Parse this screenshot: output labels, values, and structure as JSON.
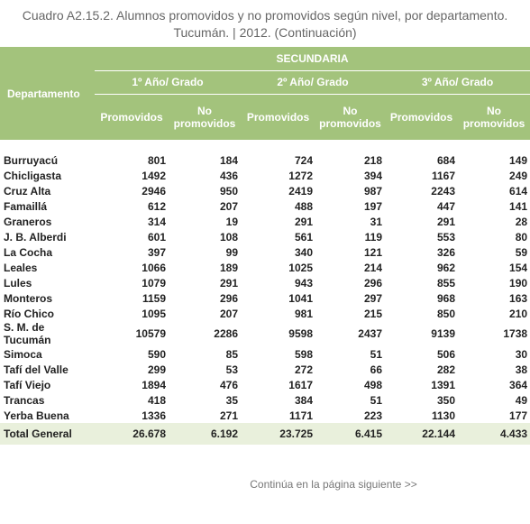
{
  "title_lines": [
    "Cuadro A2.15.2. Alumnos promovidos y no promovidos según nivel, por departamento.",
    "Tucumán. | 2012. (Continuación)"
  ],
  "table": {
    "header": {
      "first_column": "Departamento",
      "group": "SECUNDARIA",
      "years": [
        "1º Año/ Grado",
        "2º Año/ Grado",
        "3º Año/ Grado"
      ],
      "subheaders": [
        "Promovidos",
        "No promovidos",
        "Promovidos",
        "No promovidos",
        "Promovidos",
        "No promovidos"
      ]
    },
    "rows": [
      [
        "Burruyacú",
        "801",
        "184",
        "724",
        "218",
        "684",
        "149"
      ],
      [
        "Chicligasta",
        "1492",
        "436",
        "1272",
        "394",
        "1167",
        "249"
      ],
      [
        "Cruz Alta",
        "2946",
        "950",
        "2419",
        "987",
        "2243",
        "614"
      ],
      [
        "Famaillá",
        "612",
        "207",
        "488",
        "197",
        "447",
        "141"
      ],
      [
        "Graneros",
        "314",
        "19",
        "291",
        "31",
        "291",
        "28"
      ],
      [
        "J. B. Alberdi",
        "601",
        "108",
        "561",
        "119",
        "553",
        "80"
      ],
      [
        "La Cocha",
        "397",
        "99",
        "340",
        "121",
        "326",
        "59"
      ],
      [
        "Leales",
        "1066",
        "189",
        "1025",
        "214",
        "962",
        "154"
      ],
      [
        "Lules",
        "1079",
        "291",
        "943",
        "296",
        "855",
        "190"
      ],
      [
        "Monteros",
        "1159",
        "296",
        "1041",
        "297",
        "968",
        "163"
      ],
      [
        "Río Chico",
        "1095",
        "207",
        "981",
        "215",
        "850",
        "210"
      ],
      [
        "S. M. de Tucumán",
        "10579",
        "2286",
        "9598",
        "2437",
        "9139",
        "1738"
      ],
      [
        "Simoca",
        "590",
        "85",
        "598",
        "51",
        "506",
        "30"
      ],
      [
        "Tafí del Valle",
        "299",
        "53",
        "272",
        "66",
        "282",
        "38"
      ],
      [
        "Tafí Viejo",
        "1894",
        "476",
        "1617",
        "498",
        "1391",
        "364"
      ],
      [
        "Trancas",
        "418",
        "35",
        "384",
        "51",
        "350",
        "49"
      ],
      [
        "Yerba Buena",
        "1336",
        "271",
        "1171",
        "223",
        "1130",
        "177"
      ]
    ],
    "total": [
      "Total General",
      "26.678",
      "6.192",
      "23.725",
      "6.415",
      "22.144",
      "4.433"
    ]
  },
  "footer": "Continúa en la página siguiente >>"
}
